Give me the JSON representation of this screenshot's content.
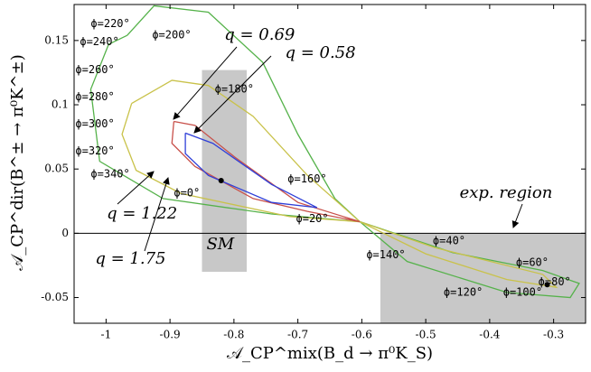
{
  "chart_data": {
    "type": "line",
    "xlabel": "𝒜_CP^mix(B_d → π⁰K_S)",
    "ylabel": "𝒜_CP^dir(B^± → π⁰K^±)",
    "xlim": [
      -1.05,
      -0.25
    ],
    "ylim": [
      -0.07,
      0.178
    ],
    "xticks": [
      -1,
      -0.9,
      -0.8,
      -0.7,
      -0.6,
      -0.5,
      -0.4,
      -0.3
    ],
    "yticks": [
      -0.05,
      0,
      0.05,
      0.1,
      0.15
    ],
    "regions": [
      {
        "xlim": [
          -0.85,
          -0.78
        ],
        "ylim": [
          -0.03,
          0.127
        ],
        "color": "#c8c8c8"
      },
      {
        "xlim": [
          -0.571,
          -0.25
        ],
        "ylim": [
          -0.07,
          0
        ],
        "color": "#c8c8c8"
      }
    ],
    "series": [
      {
        "color": "#55b24a",
        "x": [
          -0.967,
          -0.925,
          -0.84,
          -0.755,
          -0.7,
          -0.642,
          -0.603,
          -0.458,
          -0.317,
          -0.26,
          -0.274,
          -0.373,
          -0.529,
          -0.603,
          -0.741,
          -0.911,
          -1.01,
          -1.024,
          -0.996,
          -0.967
        ],
        "values": [
          0.154,
          0.177,
          0.172,
          0.133,
          0.077,
          0.027,
          0.009,
          -0.015,
          -0.029,
          -0.039,
          -0.05,
          -0.046,
          -0.022,
          0.009,
          0.015,
          0.027,
          0.056,
          0.112,
          0.147,
          0.154
        ]
      },
      {
        "color": "#c9c24a",
        "x": [
          -0.96,
          -0.897,
          -0.84,
          -0.77,
          -0.685,
          -0.603,
          -0.487,
          -0.317,
          -0.296,
          -0.373,
          -0.5,
          -0.603,
          -0.713,
          -0.883,
          -0.953,
          -0.975,
          -0.96
        ],
        "values": [
          0.101,
          0.119,
          0.115,
          0.091,
          0.045,
          0.009,
          -0.011,
          -0.032,
          -0.042,
          -0.036,
          -0.016,
          0.009,
          0.013,
          0.031,
          0.049,
          0.077,
          0.101
        ]
      },
      {
        "color": "#c8504a",
        "x": [
          -0.894,
          -0.861,
          -0.798,
          -0.7,
          -0.603,
          -0.685,
          -0.77,
          -0.861,
          -0.897,
          -0.894
        ],
        "values": [
          0.087,
          0.084,
          0.059,
          0.024,
          0.009,
          0.017,
          0.027,
          0.052,
          0.07,
          0.087
        ]
      },
      {
        "color": "#2f3fd8",
        "x": [
          -0.876,
          -0.833,
          -0.741,
          -0.67,
          -0.741,
          -0.84,
          -0.876,
          -0.876
        ],
        "values": [
          0.078,
          0.07,
          0.038,
          0.02,
          0.024,
          0.045,
          0.062,
          0.078
        ]
      }
    ],
    "points": [
      {
        "x": -0.82,
        "y": 0.041
      },
      {
        "x": -0.31,
        "y": -0.04
      }
    ],
    "annotations": [
      {
        "text": "q = 0.69",
        "x": -0.815,
        "y": 0.154
      },
      {
        "text": "q = 0.58",
        "x": -0.72,
        "y": 0.14
      },
      {
        "text": "q = 1.22",
        "x": -0.999,
        "y": 0.015
      },
      {
        "text": "q = 1.75",
        "x": -1.017,
        "y": -0.02
      },
      {
        "text": "SM",
        "x": -0.843,
        "y": -0.009
      },
      {
        "text": "exp. region",
        "x": -0.447,
        "y": 0.031
      }
    ],
    "phi_labels": [
      {
        "text": "ϕ=220°",
        "x": -1.024,
        "y": 0.163
      },
      {
        "text": "ϕ=240°",
        "x": -1.041,
        "y": 0.149
      },
      {
        "text": "ϕ=200°",
        "x": -0.928,
        "y": 0.154
      },
      {
        "text": "ϕ=260°",
        "x": -1.048,
        "y": 0.127
      },
      {
        "text": "ϕ=180°",
        "x": -0.83,
        "y": 0.112
      },
      {
        "text": "ϕ=280°",
        "x": -1.048,
        "y": 0.106
      },
      {
        "text": "ϕ=300°",
        "x": -1.048,
        "y": 0.085
      },
      {
        "text": "ϕ=320°",
        "x": -1.048,
        "y": 0.064
      },
      {
        "text": "ϕ=340°",
        "x": -1.024,
        "y": 0.046
      },
      {
        "text": "ϕ=160°",
        "x": -0.716,
        "y": 0.042
      },
      {
        "text": "ϕ=0°",
        "x": -0.894,
        "y": 0.031
      },
      {
        "text": "ϕ=20°",
        "x": -0.703,
        "y": 0.011
      },
      {
        "text": "ϕ=40°",
        "x": -0.489,
        "y": -0.006
      },
      {
        "text": "ϕ=140°",
        "x": -0.593,
        "y": -0.017
      },
      {
        "text": "ϕ=60°",
        "x": -0.359,
        "y": -0.023
      },
      {
        "text": "ϕ=80°",
        "x": -0.324,
        "y": -0.038
      },
      {
        "text": "ϕ=120°",
        "x": -0.472,
        "y": -0.046
      },
      {
        "text": "ϕ=100°",
        "x": -0.379,
        "y": -0.046
      }
    ]
  }
}
